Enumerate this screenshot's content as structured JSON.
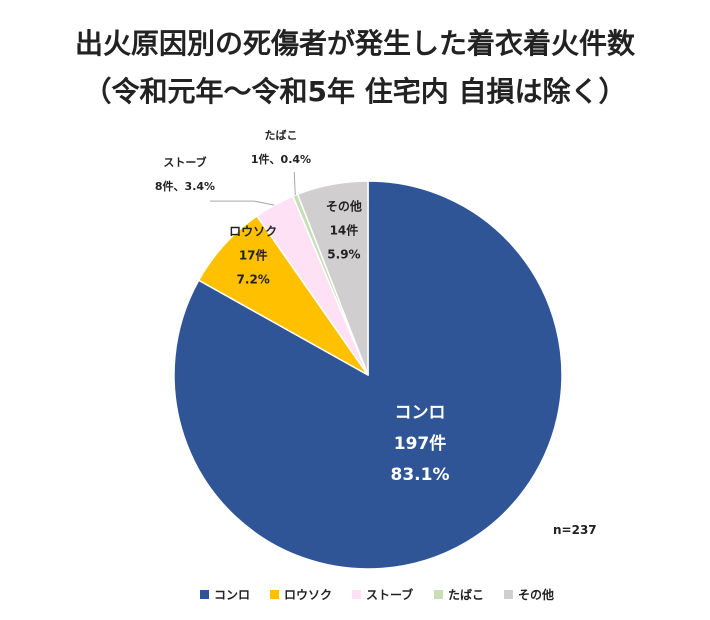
{
  "chart_data": {
    "type": "pie",
    "title": "出火原因別の死傷者が発生した着衣着火件数",
    "subtitle": "（令和元年～令和5年 住宅内 自損は除く）",
    "total_label": "n=237",
    "slices": [
      {
        "name": "コンロ",
        "count": 197,
        "count_label": "197件",
        "percent": 83.1,
        "percent_label": "83.1%",
        "color": "#2f5597"
      },
      {
        "name": "ロウソク",
        "count": 17,
        "count_label": "17件",
        "percent": 7.2,
        "percent_label": "7.2%",
        "color": "#ffc000"
      },
      {
        "name": "ストーブ",
        "count": 8,
        "count_label": "8件、3.4%",
        "percent": 3.4,
        "percent_label": "",
        "color": "#ffe1f5"
      },
      {
        "name": "たばこ",
        "count": 1,
        "count_label": "1件、0.4%",
        "percent": 0.4,
        "percent_label": "",
        "color": "#c5e0b4"
      },
      {
        "name": "その他",
        "count": 14,
        "count_label": "14件",
        "percent": 5.9,
        "percent_label": "5.9%",
        "color": "#d0cece"
      }
    ],
    "legend_placement": "bottom"
  }
}
